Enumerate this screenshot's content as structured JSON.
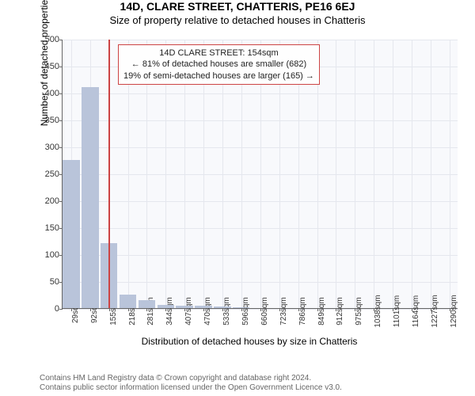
{
  "title": "14D, CLARE STREET, CHATTERIS, PE16 6EJ",
  "subtitle": "Size of property relative to detached houses in Chatteris",
  "chart": {
    "type": "histogram",
    "ylabel": "Number of detached properties",
    "xlabel": "Distribution of detached houses by size in Chatteris",
    "ylim": [
      0,
      500
    ],
    "yticks": [
      0,
      50,
      100,
      150,
      200,
      250,
      300,
      350,
      400,
      450,
      500
    ],
    "xlim": [
      0,
      1320
    ],
    "xticks": [
      29,
      92,
      155,
      218,
      281,
      344,
      407,
      470,
      533,
      596,
      660,
      723,
      786,
      849,
      912,
      975,
      1038,
      1101,
      1164,
      1227,
      1290
    ],
    "xtick_suffix": "sqm",
    "bar_color": "#b9c4da",
    "grid_color": "#e5e7ee",
    "plot_bg": "#f8f9fc",
    "marker_color": "#cc4444",
    "marker_x": 154,
    "bin_width": 63,
    "bins": [
      {
        "x": 29,
        "count": 275
      },
      {
        "x": 92,
        "count": 410
      },
      {
        "x": 155,
        "count": 120
      },
      {
        "x": 218,
        "count": 25
      },
      {
        "x": 281,
        "count": 14
      },
      {
        "x": 344,
        "count": 6
      },
      {
        "x": 407,
        "count": 5
      },
      {
        "x": 470,
        "count": 5
      },
      {
        "x": 533,
        "count": 3
      },
      {
        "x": 596,
        "count": 2
      },
      {
        "x": 660,
        "count": 0
      },
      {
        "x": 723,
        "count": 0
      },
      {
        "x": 786,
        "count": 0
      },
      {
        "x": 849,
        "count": 0
      },
      {
        "x": 912,
        "count": 0
      },
      {
        "x": 975,
        "count": 0
      },
      {
        "x": 1038,
        "count": 0
      },
      {
        "x": 1101,
        "count": 0
      },
      {
        "x": 1164,
        "count": 0
      },
      {
        "x": 1227,
        "count": 0
      },
      {
        "x": 1290,
        "count": 0
      }
    ],
    "annotation": {
      "line1": "14D CLARE STREET: 154sqm",
      "line2": "← 81% of detached houses are smaller (682)",
      "line3": "19% of semi-detached houses are larger (165) →"
    }
  },
  "footer": {
    "line1": "Contains HM Land Registry data © Crown copyright and database right 2024.",
    "line2": "Contains public sector information licensed under the Open Government Licence v3.0."
  }
}
